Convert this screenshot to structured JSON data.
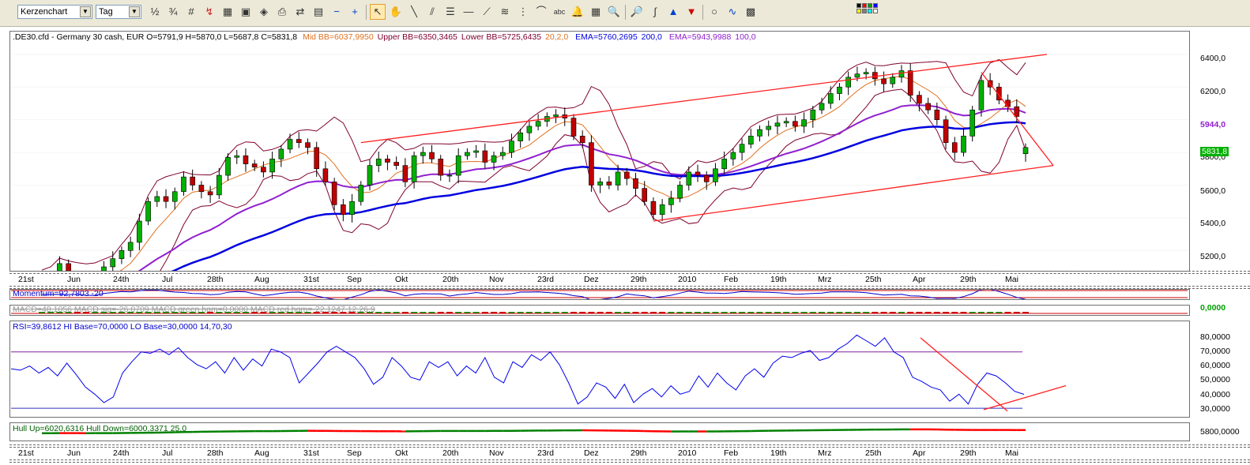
{
  "toolbar": {
    "chart_type": "Kerzenchart",
    "period": "Tag",
    "icons": [
      "scale-icon",
      "scale-icon",
      "grid-icon",
      "line-chart-icon",
      "calculator-icon",
      "chart-save-icon",
      "object-icon",
      "print-icon",
      "transfer-icon",
      "export-icon",
      "minus-icon",
      "plus-icon",
      "pointer-icon",
      "hand-icon",
      "line-icon",
      "parallel-lines-icon",
      "fibonacci-icon",
      "horizontal-line-icon",
      "fan-icon",
      "rainbow-icon",
      "vertical-lines-icon",
      "arc-icon",
      "text-icon",
      "bell-icon",
      "calculator-icon",
      "zoom-icon",
      "zoom-box-icon",
      "squiggle-icon",
      "arrow-up-icon",
      "arrow-down-icon",
      "circle-icon",
      "wave-icon",
      "color-palette-icon"
    ],
    "colors": [
      "#000000",
      "#ff0000",
      "#00a000",
      "#0000ff",
      "#ffff00",
      "#808080",
      "#00ffff",
      "#ffffff"
    ]
  },
  "price_panel": {
    "info": [
      {
        "text": ".DE30.cfd - Germany 30 cash, EUR O=5791,9 H=5870,0 L=5687,8 C=5831,8",
        "color": "#000000"
      },
      {
        "text": "Mid BB=6037,9950",
        "color": "#e07020"
      },
      {
        "text": "Upper BB=6350,3465",
        "color": "#800030"
      },
      {
        "text": "Lower BB=5725,6435",
        "color": "#800030"
      },
      {
        "text": "20,2,0",
        "color": "#e07020"
      },
      {
        "text": "EMA=5760,2695",
        "color": "#0000e0"
      },
      {
        "text": "200,0",
        "color": "#0000e0"
      },
      {
        "text": "EMA=5943,9988",
        "color": "#9020d0"
      },
      {
        "text": "100,0",
        "color": "#9020d0"
      }
    ],
    "y_ticks": [
      "6400,0",
      "6200,0",
      "6000,0",
      "5800,0",
      "5600,0",
      "5400,0",
      "5200,0"
    ],
    "badges": [
      {
        "text": "5944,0",
        "color": "#9020d0"
      },
      {
        "text": "5831,8",
        "color": "#00a000"
      }
    ]
  },
  "x_axis_labels": [
    "21st",
    "Jun",
    "24th",
    "Jul",
    "28th",
    "Aug",
    "31st",
    "Sep",
    "Okt",
    "20th",
    "Nov",
    "23rd",
    "Dez",
    "29th",
    "2010",
    "Feb",
    "19th",
    "Mrz",
    "25th",
    "Apr",
    "29th",
    "Mai"
  ],
  "momentum_panel": {
    "info": "Momentum=92,7803 -20"
  },
  "macd_panel": {
    "info": "MACD=48,1056 MACD sig=-26,0709 MACD green hgm=0,0000 MACD red hgm=-22,1247 12,26,9",
    "right_value": "0,0000"
  },
  "rsi_panel": {
    "info": "RSI=39,8612 HI Base=70,0000 LO Base=30,0000  14,70,30",
    "y_ticks": [
      "80,0000",
      "70,0000",
      "60,0000",
      "50,0000",
      "40,0000",
      "30,0000"
    ]
  },
  "hull_panel": {
    "info": "Hull Up=6020,6316 Hull Down=6000,3371  25,0",
    "y_tick": "5800,0000"
  },
  "chart_data": [
    {
      "type": "candlestick",
      "title": ".DE30.cfd - Germany 30 cash, EUR",
      "last_bar": {
        "open": 5791.9,
        "high": 5870.0,
        "low": 5687.8,
        "close": 5831.8
      },
      "ylim": [
        5100,
        6520
      ],
      "x_labels": [
        "21st",
        "Jun",
        "24th",
        "Jul",
        "28th",
        "Aug",
        "31st",
        "Sep",
        "Okt",
        "20th",
        "Nov",
        "23rd",
        "Dez",
        "29th",
        "2010",
        "Feb",
        "19th",
        "Mrz",
        "25th",
        "Apr",
        "29th",
        "Mai"
      ],
      "close_approx": [
        5000,
        5040,
        5120,
        5020,
        5000,
        4980,
        5050,
        5100,
        5150,
        5200,
        5250,
        5380,
        5500,
        5530,
        5500,
        5560,
        5650,
        5600,
        5560,
        5540,
        5660,
        5770,
        5780,
        5730,
        5710,
        5680,
        5760,
        5820,
        5880,
        5860,
        5830,
        5700,
        5620,
        5480,
        5420,
        5500,
        5600,
        5720,
        5760,
        5740,
        5720,
        5620,
        5780,
        5800,
        5760,
        5660,
        5660,
        5780,
        5800,
        5810,
        5740,
        5780,
        5800,
        5870,
        5920,
        5960,
        5990,
        6020,
        6030,
        6010,
        5900,
        5860,
        5600,
        5620,
        5600,
        5680,
        5640,
        5580,
        5500,
        5420,
        5480,
        5520,
        5600,
        5680,
        5660,
        5620,
        5700,
        5760,
        5800,
        5850,
        5900,
        5940,
        5960,
        5980,
        5990,
        5960,
        6000,
        6060,
        6100,
        6160,
        6200,
        6260,
        6280,
        6290,
        6250,
        6220,
        6260,
        6300,
        6150,
        6100,
        6060,
        6000,
        5860,
        5800,
        5900,
        6060,
        6240,
        6200,
        6120,
        6080,
        6020,
        5830
      ],
      "series": [
        {
          "name": "Mid BB",
          "color": "#e07020",
          "last": 6037.995
        },
        {
          "name": "Upper BB",
          "color": "#800030",
          "last": 6350.3465
        },
        {
          "name": "Lower BB",
          "color": "#800030",
          "last": 5725.6435
        },
        {
          "name": "EMA 200",
          "color": "#0000e0",
          "last": 5760.2695
        },
        {
          "name": "EMA 100",
          "color": "#9020d0",
          "last": 5943.9988
        }
      ]
    },
    {
      "type": "line",
      "title": "RSI 14,70,30",
      "ylim": [
        25,
        85
      ],
      "levels": {
        "hi": 70,
        "lo": 30
      },
      "values": [
        58,
        57,
        60,
        55,
        59,
        53,
        62,
        54,
        45,
        40,
        34,
        38,
        55,
        63,
        70,
        69,
        72,
        68,
        73,
        66,
        61,
        58,
        63,
        55,
        66,
        57,
        65,
        60,
        72,
        70,
        66,
        48,
        55,
        62,
        70,
        74,
        70,
        66,
        58,
        47,
        52,
        66,
        60,
        52,
        50,
        63,
        59,
        63,
        53,
        60,
        55,
        66,
        52,
        48,
        63,
        59,
        68,
        64,
        70,
        61,
        48,
        33,
        38,
        48,
        45,
        37,
        47,
        34,
        40,
        44,
        38,
        46,
        40,
        42,
        53,
        45,
        55,
        48,
        43,
        53,
        58,
        52,
        62,
        67,
        66,
        69,
        71,
        64,
        66,
        72,
        76,
        82,
        78,
        74,
        80,
        70,
        66,
        52,
        49,
        45,
        43,
        35,
        40,
        33,
        47,
        55,
        53,
        48,
        42,
        39.86
      ]
    }
  ]
}
